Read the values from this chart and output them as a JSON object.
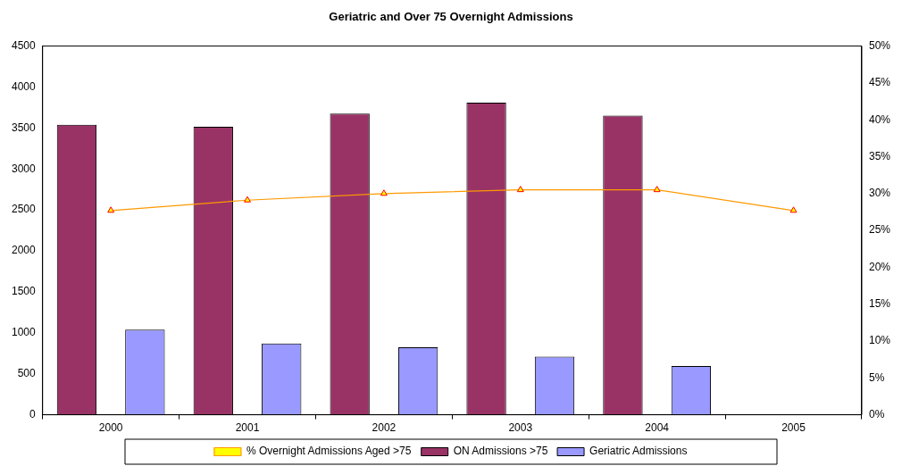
{
  "chart_data": {
    "type": "bar",
    "title": "Geriatric and Over 75 Overnight Admissions",
    "categories": [
      "2000",
      "2001",
      "2002",
      "2003",
      "2004",
      "2005"
    ],
    "series": [
      {
        "name": "ON Admissions >75",
        "color": "#993366",
        "values": [
          3540,
          3515,
          3675,
          3810,
          3650,
          null
        ]
      },
      {
        "name": "Geriatric Admissions",
        "color": "#9999ff",
        "values": [
          1040,
          870,
          825,
          710,
          595,
          null
        ]
      },
      {
        "name": "% Overnight Admissions Aged >75",
        "type": "line",
        "axis": "y2",
        "color": "#ff9900",
        "marker": "triangle",
        "values": [
          27.7,
          29.1,
          30.0,
          30.5,
          30.5,
          27.7
        ]
      }
    ],
    "ylim": [
      0,
      4500
    ],
    "yticks": [
      0,
      500,
      1000,
      1500,
      2000,
      2500,
      3000,
      3500,
      4000,
      4500
    ],
    "y2lim": [
      0,
      50
    ],
    "y2ticks": [
      {
        "value": 0,
        "label": "0%"
      },
      {
        "value": 5,
        "label": "5%"
      },
      {
        "value": 10,
        "label": "10%"
      },
      {
        "value": 15,
        "label": "15%"
      },
      {
        "value": 20,
        "label": "20%"
      },
      {
        "value": 25,
        "label": "25%"
      },
      {
        "value": 30,
        "label": "30%"
      },
      {
        "value": 35,
        "label": "35%"
      },
      {
        "value": 40,
        "label": "40%"
      },
      {
        "value": 45,
        "label": "45%"
      },
      {
        "value": 50,
        "label": "50%"
      }
    ],
    "grid": false,
    "legend": "bottom"
  }
}
